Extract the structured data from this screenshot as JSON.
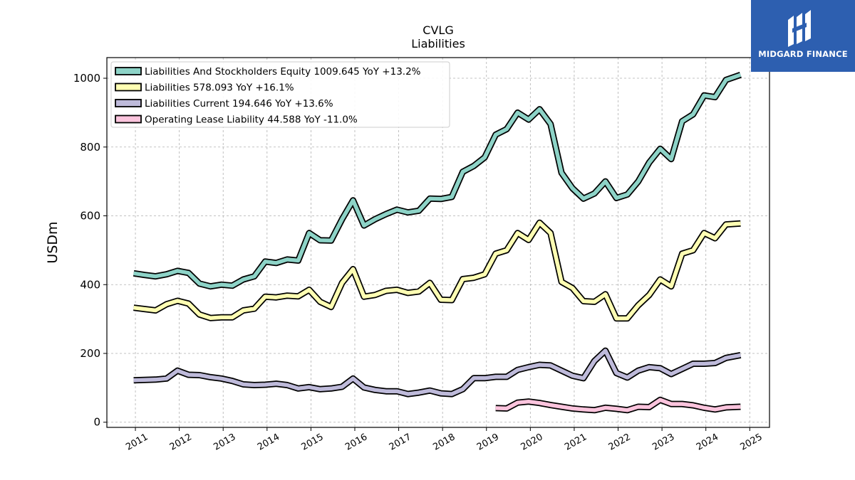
{
  "brand": {
    "name": "MIDGARD FINANCE",
    "background": "#2d5fb0"
  },
  "chart_data": {
    "type": "line",
    "title": "CVLG",
    "subtitle": "Liabilities",
    "ylabel": "USDm",
    "xlabel": "",
    "ylim": [
      -15,
      1060
    ],
    "xlim": [
      2010.35,
      2025.45
    ],
    "yticks": [
      0,
      200,
      400,
      600,
      800,
      1000
    ],
    "xticks": [
      2011,
      2012,
      2013,
      2014,
      2015,
      2016,
      2017,
      2018,
      2019,
      2020,
      2021,
      2022,
      2023,
      2024,
      2025
    ],
    "grid": true,
    "legend_position": "top-left",
    "series": [
      {
        "name": "Liabilities And Stockholders Equity",
        "legend_label": "Liabilities And Stockholders Equity  1009.645 YoY +13.2%",
        "color": "#8dd3c7",
        "x": [
          2010.96,
          2011.21,
          2011.46,
          2011.71,
          2011.96,
          2012.21,
          2012.46,
          2012.71,
          2012.96,
          2013.21,
          2013.46,
          2013.71,
          2013.96,
          2014.21,
          2014.46,
          2014.71,
          2014.96,
          2015.21,
          2015.46,
          2015.71,
          2015.96,
          2016.21,
          2016.46,
          2016.71,
          2016.96,
          2017.21,
          2017.46,
          2017.71,
          2017.96,
          2018.21,
          2018.46,
          2018.71,
          2018.96,
          2019.21,
          2019.46,
          2019.71,
          2019.96,
          2020.21,
          2020.46,
          2020.71,
          2020.96,
          2021.21,
          2021.46,
          2021.71,
          2021.96,
          2022.21,
          2022.46,
          2022.71,
          2022.96,
          2023.21,
          2023.46,
          2023.71,
          2023.96,
          2024.21,
          2024.46,
          2024.79
        ],
        "values": [
          433,
          428,
          424,
          430,
          440,
          434,
          403,
          395,
          400,
          397,
          415,
          424,
          467,
          463,
          473,
          470,
          550,
          529,
          528,
          590,
          645,
          572,
          590,
          605,
          618,
          610,
          615,
          650,
          649,
          655,
          728,
          745,
          770,
          836,
          852,
          900,
          880,
          910,
          867,
          725,
          680,
          650,
          665,
          700,
          652,
          662,
          700,
          755,
          795,
          765,
          875,
          895,
          950,
          945,
          995,
          1010
        ]
      },
      {
        "name": "Liabilities",
        "legend_label": "Liabilities  578.093 YoY +16.1%",
        "color": "#ffffb3",
        "x": [
          2010.96,
          2011.21,
          2011.46,
          2011.71,
          2011.96,
          2012.21,
          2012.46,
          2012.71,
          2012.96,
          2013.21,
          2013.46,
          2013.71,
          2013.96,
          2014.21,
          2014.46,
          2014.71,
          2014.96,
          2015.21,
          2015.46,
          2015.71,
          2015.96,
          2016.21,
          2016.46,
          2016.71,
          2016.96,
          2017.21,
          2017.46,
          2017.71,
          2017.96,
          2018.21,
          2018.46,
          2018.71,
          2018.96,
          2019.21,
          2019.46,
          2019.71,
          2019.96,
          2020.21,
          2020.46,
          2020.71,
          2020.96,
          2021.21,
          2021.46,
          2021.71,
          2021.96,
          2022.21,
          2022.46,
          2022.71,
          2022.96,
          2023.21,
          2023.46,
          2023.71,
          2023.96,
          2024.21,
          2024.46,
          2024.79
        ],
        "values": [
          333,
          329,
          325,
          343,
          353,
          345,
          313,
          303,
          305,
          305,
          325,
          330,
          365,
          363,
          368,
          366,
          385,
          350,
          335,
          405,
          445,
          365,
          370,
          382,
          385,
          376,
          380,
          405,
          356,
          355,
          416,
          420,
          430,
          490,
          500,
          550,
          530,
          580,
          550,
          408,
          390,
          352,
          350,
          372,
          302,
          302,
          340,
          370,
          415,
          395,
          490,
          500,
          550,
          535,
          575,
          578
        ]
      },
      {
        "name": "Liabilities Current",
        "legend_label": "Liabilities Current  194.646 YoY +13.6%",
        "color": "#bebada",
        "x": [
          2010.96,
          2011.21,
          2011.46,
          2011.71,
          2011.96,
          2012.21,
          2012.46,
          2012.71,
          2012.96,
          2013.21,
          2013.46,
          2013.71,
          2013.96,
          2014.21,
          2014.46,
          2014.71,
          2014.96,
          2015.21,
          2015.46,
          2015.71,
          2015.96,
          2016.21,
          2016.46,
          2016.71,
          2016.96,
          2017.21,
          2017.46,
          2017.71,
          2017.96,
          2018.21,
          2018.46,
          2018.71,
          2018.96,
          2019.21,
          2019.46,
          2019.71,
          2019.96,
          2020.21,
          2020.46,
          2020.71,
          2020.96,
          2021.21,
          2021.46,
          2021.71,
          2021.96,
          2022.21,
          2022.46,
          2022.71,
          2022.96,
          2023.21,
          2023.46,
          2023.71,
          2023.96,
          2024.21,
          2024.46,
          2024.79
        ],
        "values": [
          122,
          123,
          124,
          127,
          150,
          138,
          137,
          131,
          127,
          120,
          110,
          108,
          109,
          112,
          108,
          98,
          102,
          96,
          98,
          103,
          127,
          101,
          94,
          90,
          90,
          82,
          86,
          92,
          84,
          82,
          96,
          128,
          128,
          132,
          132,
          152,
          160,
          167,
          165,
          150,
          135,
          128,
          178,
          208,
          143,
          130,
          150,
          160,
          157,
          140,
          155,
          170,
          170,
          172,
          187,
          195
        ]
      },
      {
        "name": "Operating Lease Liability",
        "legend_label": "Operating Lease Liability  44.588 YoY -11.0%",
        "color": "#fbc4dd",
        "x": [
          2019.21,
          2019.46,
          2019.71,
          2019.96,
          2020.21,
          2020.46,
          2020.71,
          2020.96,
          2021.21,
          2021.46,
          2021.71,
          2021.96,
          2022.21,
          2022.46,
          2022.71,
          2022.96,
          2023.21,
          2023.46,
          2023.71,
          2023.96,
          2024.21,
          2024.46,
          2024.79
        ],
        "values": [
          41,
          40,
          57,
          60,
          56,
          50,
          45,
          40,
          37,
          35,
          42,
          39,
          35,
          45,
          44,
          65,
          53,
          53,
          49,
          42,
          37,
          43,
          45
        ]
      }
    ]
  }
}
